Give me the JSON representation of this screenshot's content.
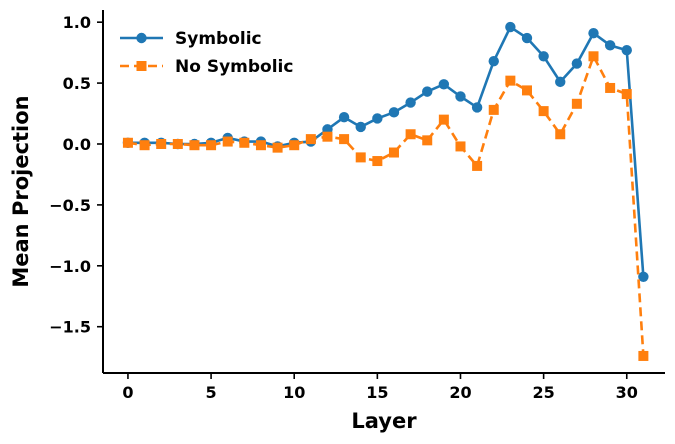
{
  "chart_data": {
    "type": "line",
    "title": "",
    "xlabel": "Layer",
    "ylabel": "Mean Projection",
    "xlim": [
      -1.5,
      32.3
    ],
    "ylim": [
      -1.88,
      1.1
    ],
    "xticks": [
      0,
      5,
      10,
      15,
      20,
      25,
      30
    ],
    "yticks": [
      1.0,
      0.5,
      0.0,
      -0.5,
      -1.0,
      -1.5
    ],
    "ytick_labels": [
      "1.0",
      "0.5",
      "0.0",
      "−0.5",
      "−1.0",
      "−1.5"
    ],
    "grid": false,
    "legend_position": "top-left",
    "x": [
      0,
      1,
      2,
      3,
      4,
      5,
      6,
      7,
      8,
      9,
      10,
      11,
      12,
      13,
      14,
      15,
      16,
      17,
      18,
      19,
      20,
      21,
      22,
      23,
      24,
      25,
      26,
      27,
      28,
      29,
      30,
      31
    ],
    "series": [
      {
        "name": "Symbolic",
        "color": "#1f77b4",
        "line": "solid",
        "marker": "circle",
        "values": [
          0.01,
          0.01,
          0.01,
          0.0,
          0.0,
          0.01,
          0.05,
          0.02,
          0.02,
          -0.02,
          0.01,
          0.02,
          0.12,
          0.22,
          0.14,
          0.21,
          0.26,
          0.34,
          0.43,
          0.49,
          0.39,
          0.3,
          0.68,
          0.96,
          0.87,
          0.72,
          0.51,
          0.66,
          0.91,
          0.81,
          0.77,
          -1.09
        ]
      },
      {
        "name": "No Symbolic",
        "color": "#ff7f0e",
        "line": "dashed",
        "marker": "square",
        "values": [
          0.01,
          -0.01,
          0.0,
          0.0,
          -0.01,
          -0.01,
          0.02,
          0.01,
          -0.01,
          -0.03,
          -0.01,
          0.04,
          0.06,
          0.04,
          -0.11,
          -0.14,
          -0.07,
          0.08,
          0.03,
          0.2,
          -0.02,
          -0.18,
          0.28,
          0.52,
          0.44,
          0.27,
          0.08,
          0.33,
          0.72,
          0.46,
          0.41,
          -1.74
        ]
      }
    ]
  }
}
